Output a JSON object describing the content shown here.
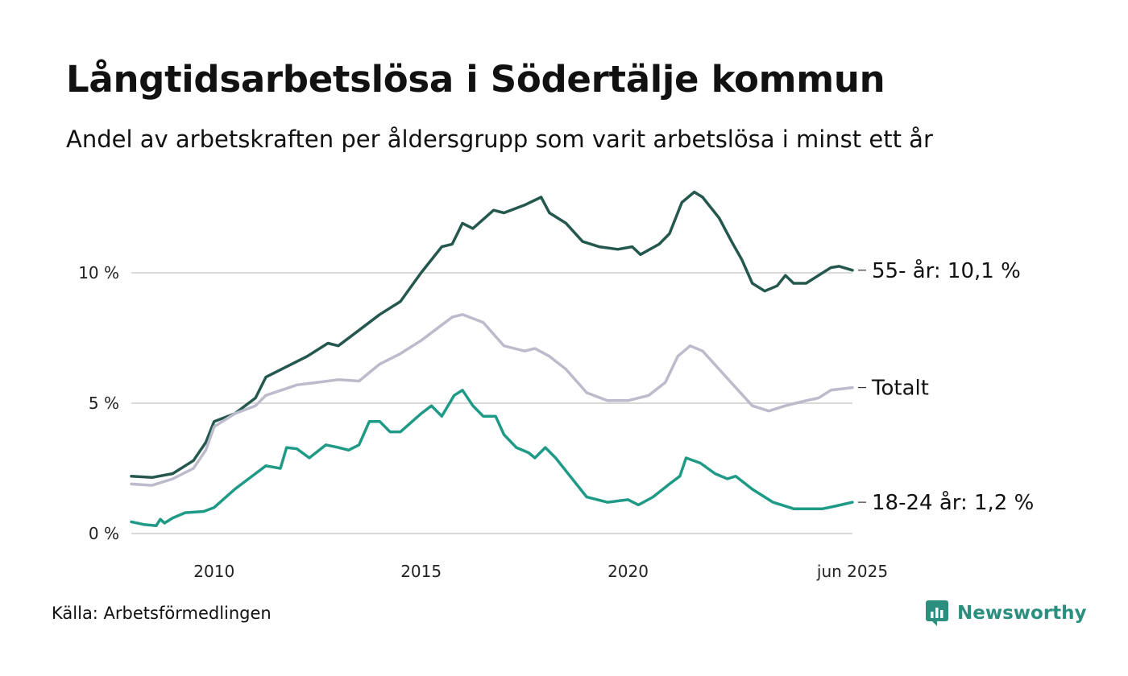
{
  "header": {
    "title": "Långtidsarbetslösa i Södertälje kommun",
    "subtitle": "Andel av arbetskraften per åldersgrupp som varit arbetslösa i minst ett år"
  },
  "footer": {
    "source": "Källa: Arbetsförmedlingen",
    "logo_text": "Newsworthy"
  },
  "colors": {
    "age_55_plus": "#24574d",
    "total": "#bcbbcb",
    "age_18_24": "#1e9a86",
    "grid": "#d9d9d9",
    "brand": "#2a8f7f"
  },
  "chart_data": {
    "type": "line",
    "ylim": [
      0,
      13
    ],
    "y_ticks": [
      {
        "value": 0,
        "label": "0 %"
      },
      {
        "value": 5,
        "label": "5 %"
      },
      {
        "value": 10,
        "label": "10 %"
      }
    ],
    "x_ticks": [
      {
        "value": 2010,
        "label": "2010"
      },
      {
        "value": 2015,
        "label": "2015"
      },
      {
        "value": 2020,
        "label": "2020"
      },
      {
        "value": 2025.42,
        "label": "jun 2025"
      }
    ],
    "xlim": [
      2008.0,
      2025.42
    ],
    "series": [
      {
        "key": "age_55_plus",
        "name": "55- år",
        "end_label": "55- år: 10,1 %",
        "points": [
          [
            2008.0,
            2.2
          ],
          [
            2008.5,
            2.15
          ],
          [
            2009.0,
            2.3
          ],
          [
            2009.5,
            2.8
          ],
          [
            2009.8,
            3.5
          ],
          [
            2010.0,
            4.3
          ],
          [
            2010.5,
            4.6
          ],
          [
            2011.0,
            5.2
          ],
          [
            2011.25,
            6.0
          ],
          [
            2012.0,
            6.6
          ],
          [
            2012.25,
            6.8
          ],
          [
            2012.75,
            7.3
          ],
          [
            2013.0,
            7.2
          ],
          [
            2013.5,
            7.8
          ],
          [
            2014.0,
            8.4
          ],
          [
            2014.5,
            8.9
          ],
          [
            2015.0,
            10.0
          ],
          [
            2015.5,
            11.0
          ],
          [
            2015.75,
            11.1
          ],
          [
            2016.0,
            11.9
          ],
          [
            2016.25,
            11.7
          ],
          [
            2016.75,
            12.4
          ],
          [
            2017.0,
            12.3
          ],
          [
            2017.5,
            12.6
          ],
          [
            2017.9,
            12.9
          ],
          [
            2018.1,
            12.3
          ],
          [
            2018.5,
            11.9
          ],
          [
            2018.9,
            11.2
          ],
          [
            2019.3,
            11.0
          ],
          [
            2019.75,
            10.9
          ],
          [
            2020.1,
            11.0
          ],
          [
            2020.3,
            10.7
          ],
          [
            2020.75,
            11.1
          ],
          [
            2021.0,
            11.5
          ],
          [
            2021.3,
            12.7
          ],
          [
            2021.6,
            13.1
          ],
          [
            2021.8,
            12.9
          ],
          [
            2022.2,
            12.1
          ],
          [
            2022.5,
            11.2
          ],
          [
            2022.75,
            10.5
          ],
          [
            2023.0,
            9.6
          ],
          [
            2023.3,
            9.3
          ],
          [
            2023.6,
            9.5
          ],
          [
            2023.8,
            9.9
          ],
          [
            2024.0,
            9.6
          ],
          [
            2024.3,
            9.6
          ],
          [
            2024.6,
            9.9
          ],
          [
            2024.9,
            10.2
          ],
          [
            2025.1,
            10.25
          ],
          [
            2025.42,
            10.1
          ]
        ]
      },
      {
        "key": "total",
        "name": "Totalt",
        "end_label": "Totalt",
        "points": [
          [
            2008.0,
            1.9
          ],
          [
            2008.5,
            1.85
          ],
          [
            2009.0,
            2.1
          ],
          [
            2009.5,
            2.5
          ],
          [
            2009.8,
            3.2
          ],
          [
            2010.0,
            4.1
          ],
          [
            2010.5,
            4.6
          ],
          [
            2011.0,
            4.9
          ],
          [
            2011.25,
            5.3
          ],
          [
            2012.0,
            5.7
          ],
          [
            2012.5,
            5.8
          ],
          [
            2013.0,
            5.9
          ],
          [
            2013.5,
            5.85
          ],
          [
            2014.0,
            6.5
          ],
          [
            2014.5,
            6.9
          ],
          [
            2015.0,
            7.4
          ],
          [
            2015.5,
            8.0
          ],
          [
            2015.75,
            8.3
          ],
          [
            2016.0,
            8.4
          ],
          [
            2016.5,
            8.1
          ],
          [
            2017.0,
            7.2
          ],
          [
            2017.5,
            7.0
          ],
          [
            2017.75,
            7.1
          ],
          [
            2018.1,
            6.8
          ],
          [
            2018.5,
            6.3
          ],
          [
            2019.0,
            5.4
          ],
          [
            2019.5,
            5.1
          ],
          [
            2020.0,
            5.1
          ],
          [
            2020.5,
            5.3
          ],
          [
            2020.9,
            5.8
          ],
          [
            2021.2,
            6.8
          ],
          [
            2021.5,
            7.2
          ],
          [
            2021.8,
            7.0
          ],
          [
            2022.2,
            6.3
          ],
          [
            2022.6,
            5.6
          ],
          [
            2023.0,
            4.9
          ],
          [
            2023.4,
            4.7
          ],
          [
            2023.8,
            4.9
          ],
          [
            2024.3,
            5.1
          ],
          [
            2024.6,
            5.2
          ],
          [
            2024.9,
            5.5
          ],
          [
            2025.42,
            5.6
          ]
        ]
      },
      {
        "key": "age_18_24",
        "name": "18-24 år",
        "end_label": "18-24 år:  1,2 %",
        "points": [
          [
            2008.0,
            0.45
          ],
          [
            2008.3,
            0.35
          ],
          [
            2008.6,
            0.3
          ],
          [
            2008.7,
            0.55
          ],
          [
            2008.8,
            0.4
          ],
          [
            2009.0,
            0.6
          ],
          [
            2009.3,
            0.8
          ],
          [
            2009.75,
            0.85
          ],
          [
            2010.0,
            1.0
          ],
          [
            2010.5,
            1.7
          ],
          [
            2011.0,
            2.3
          ],
          [
            2011.25,
            2.6
          ],
          [
            2011.6,
            2.5
          ],
          [
            2011.75,
            3.3
          ],
          [
            2012.0,
            3.25
          ],
          [
            2012.3,
            2.9
          ],
          [
            2012.7,
            3.4
          ],
          [
            2013.0,
            3.3
          ],
          [
            2013.25,
            3.2
          ],
          [
            2013.5,
            3.4
          ],
          [
            2013.75,
            4.3
          ],
          [
            2014.0,
            4.3
          ],
          [
            2014.25,
            3.9
          ],
          [
            2014.5,
            3.9
          ],
          [
            2015.0,
            4.6
          ],
          [
            2015.25,
            4.9
          ],
          [
            2015.5,
            4.5
          ],
          [
            2015.8,
            5.3
          ],
          [
            2016.0,
            5.5
          ],
          [
            2016.25,
            4.9
          ],
          [
            2016.5,
            4.5
          ],
          [
            2016.8,
            4.5
          ],
          [
            2017.0,
            3.8
          ],
          [
            2017.3,
            3.3
          ],
          [
            2017.6,
            3.1
          ],
          [
            2017.75,
            2.9
          ],
          [
            2018.0,
            3.3
          ],
          [
            2018.25,
            2.9
          ],
          [
            2018.6,
            2.2
          ],
          [
            2019.0,
            1.4
          ],
          [
            2019.5,
            1.2
          ],
          [
            2020.0,
            1.3
          ],
          [
            2020.25,
            1.1
          ],
          [
            2020.6,
            1.4
          ],
          [
            2021.0,
            1.9
          ],
          [
            2021.25,
            2.2
          ],
          [
            2021.4,
            2.9
          ],
          [
            2021.75,
            2.7
          ],
          [
            2022.1,
            2.3
          ],
          [
            2022.4,
            2.1
          ],
          [
            2022.6,
            2.2
          ],
          [
            2023.0,
            1.7
          ],
          [
            2023.5,
            1.2
          ],
          [
            2024.0,
            0.95
          ],
          [
            2024.4,
            0.95
          ],
          [
            2024.7,
            0.95
          ],
          [
            2025.0,
            1.05
          ],
          [
            2025.42,
            1.2
          ]
        ]
      }
    ]
  }
}
